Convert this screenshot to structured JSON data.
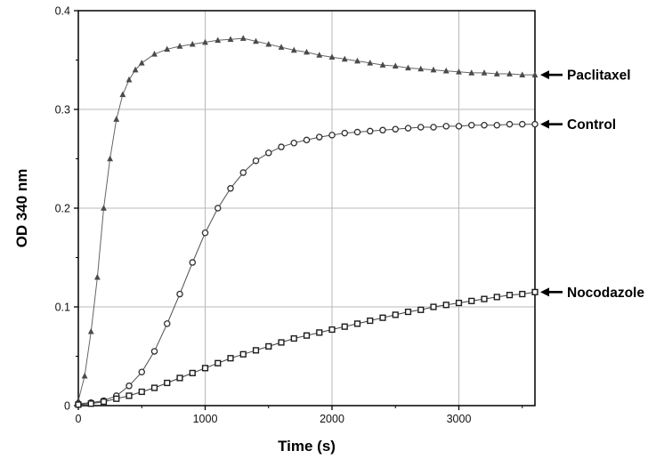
{
  "figure": {
    "xlabel": "Time (s)",
    "ylabel": "OD 340 nm"
  },
  "chart_data": {
    "type": "scatter",
    "title": "",
    "xlabel": "Time (s)",
    "ylabel": "OD 340 nm",
    "xlim": [
      0,
      3600
    ],
    "ylim": [
      0,
      0.4
    ],
    "xticks": [
      0,
      1000,
      2000,
      3000
    ],
    "yticks": [
      0,
      0.1,
      0.2,
      0.3,
      0.4
    ],
    "grid": true,
    "legend_position": "right-annotations",
    "colors": {
      "axis": "#000000",
      "grid": "#b9b9b9",
      "paclitaxel": "#4a4a4a",
      "control": "#2f2f2f",
      "nocodazole": "#1c1c1c"
    },
    "series": [
      {
        "name": "Paclitaxel",
        "marker": "triangle",
        "color": "#4a4a4a",
        "x": [
          0,
          50,
          100,
          150,
          200,
          250,
          300,
          350,
          400,
          450,
          500,
          600,
          700,
          800,
          900,
          1000,
          1100,
          1200,
          1300,
          1400,
          1500,
          1600,
          1700,
          1800,
          1900,
          2000,
          2100,
          2200,
          2300,
          2400,
          2500,
          2600,
          2700,
          2800,
          2900,
          3000,
          3100,
          3200,
          3300,
          3400,
          3500,
          3600
        ],
        "y": [
          0.005,
          0.03,
          0.075,
          0.13,
          0.2,
          0.25,
          0.29,
          0.315,
          0.33,
          0.34,
          0.347,
          0.356,
          0.361,
          0.364,
          0.366,
          0.368,
          0.37,
          0.371,
          0.372,
          0.369,
          0.366,
          0.363,
          0.36,
          0.358,
          0.355,
          0.353,
          0.351,
          0.349,
          0.347,
          0.345,
          0.344,
          0.342,
          0.341,
          0.34,
          0.339,
          0.338,
          0.337,
          0.337,
          0.336,
          0.336,
          0.335,
          0.335
        ]
      },
      {
        "name": "Control",
        "marker": "circle",
        "color": "#2f2f2f",
        "x": [
          0,
          100,
          200,
          300,
          400,
          500,
          600,
          700,
          800,
          900,
          1000,
          1100,
          1200,
          1300,
          1400,
          1500,
          1600,
          1700,
          1800,
          1900,
          2000,
          2100,
          2200,
          2300,
          2400,
          2500,
          2600,
          2700,
          2800,
          2900,
          3000,
          3100,
          3200,
          3300,
          3400,
          3500,
          3600
        ],
        "y": [
          0.002,
          0.003,
          0.005,
          0.01,
          0.02,
          0.034,
          0.055,
          0.083,
          0.113,
          0.145,
          0.175,
          0.2,
          0.22,
          0.236,
          0.248,
          0.256,
          0.262,
          0.266,
          0.269,
          0.272,
          0.274,
          0.276,
          0.277,
          0.278,
          0.279,
          0.28,
          0.281,
          0.282,
          0.282,
          0.283,
          0.283,
          0.284,
          0.284,
          0.284,
          0.285,
          0.285,
          0.285
        ]
      },
      {
        "name": "Nocodazole",
        "marker": "square",
        "color": "#1c1c1c",
        "x": [
          0,
          100,
          200,
          300,
          400,
          500,
          600,
          700,
          800,
          900,
          1000,
          1100,
          1200,
          1300,
          1400,
          1500,
          1600,
          1700,
          1800,
          1900,
          2000,
          2100,
          2200,
          2300,
          2400,
          2500,
          2600,
          2700,
          2800,
          2900,
          3000,
          3100,
          3200,
          3300,
          3400,
          3500,
          3600
        ],
        "y": [
          0.001,
          0.002,
          0.004,
          0.007,
          0.01,
          0.014,
          0.018,
          0.023,
          0.028,
          0.033,
          0.038,
          0.043,
          0.048,
          0.052,
          0.056,
          0.06,
          0.064,
          0.068,
          0.071,
          0.074,
          0.077,
          0.08,
          0.083,
          0.086,
          0.089,
          0.092,
          0.095,
          0.097,
          0.1,
          0.102,
          0.104,
          0.106,
          0.108,
          0.11,
          0.112,
          0.113,
          0.115
        ]
      }
    ],
    "annotations": [
      {
        "label": "Paclitaxel",
        "value": 0.335
      },
      {
        "label": "Control",
        "value": 0.285
      },
      {
        "label": "Nocodazole",
        "value": 0.115
      }
    ]
  }
}
